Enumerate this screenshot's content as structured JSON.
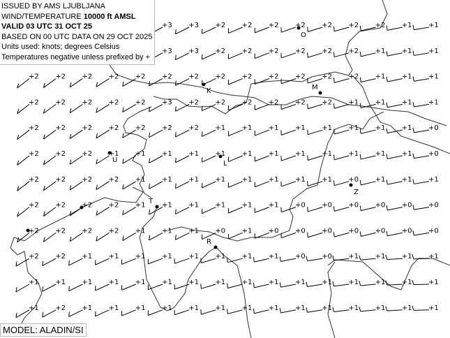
{
  "header": {
    "issued": "ISSUED BY AMS LJUBLJANA",
    "product_prefix": "WIND/TEMPERATURE ",
    "level": "10000 ft AMSL",
    "valid": "VALID 03 UTC 31 OCT 25",
    "based_on": "BASED ON 00 UTC DATA ON 29 OCT 2025",
    "units": "Units used: knots; degrees Celsius",
    "note": "Temperatures negative unless prefixed by +"
  },
  "model_label": "MODEL: ALADIN/SI",
  "temperature_grid": [
    [
      null,
      null,
      null,
      null,
      null,
      "+3",
      "+3",
      "+2",
      "+2",
      "+2",
      "+2",
      "+2",
      "+2",
      "+2",
      "+1",
      "+1"
    ],
    [
      null,
      null,
      null,
      null,
      null,
      "+3",
      "+3",
      "+2",
      "+2",
      "+2",
      "+2",
      "+2",
      "+2",
      "+1",
      "+1",
      "+1"
    ],
    [
      "+2",
      "+2",
      "+2",
      "+2",
      "+2",
      "+2",
      "+2",
      "+2",
      "+2",
      "+2",
      "+2",
      "+2",
      "+2",
      "+1",
      "+1",
      "+1"
    ],
    [
      "+2",
      "+2",
      "+2",
      "+2",
      "+2",
      "+3",
      "+2",
      "+2",
      "+2",
      "+2",
      "+2",
      "+2",
      "+1",
      "+1",
      "+1",
      "+1"
    ],
    [
      "+2",
      "+2",
      "+2",
      "+2",
      "+2",
      "+2",
      "+2",
      "+1",
      "+1",
      "+1",
      "+1",
      "+1",
      "+1",
      "+1",
      "+1",
      "+0"
    ],
    [
      "+2",
      "+2",
      "+2",
      "+1",
      "+1",
      "+1",
      "+1",
      "+1",
      "+1",
      "+1",
      "+1",
      "+1",
      "+1",
      "+1",
      "+1",
      "+0"
    ],
    [
      "+2",
      "+2",
      "+2",
      "+2",
      "+1",
      "+1",
      "+1",
      "+1",
      "+1",
      "+1",
      "+1",
      "+1",
      "+0",
      "+1",
      "+1",
      "+1"
    ],
    [
      "+2",
      "+2",
      "+2",
      "+2",
      "+1",
      "+1",
      "+1",
      "+1",
      "+1",
      "+1",
      "+0",
      "+0",
      "+0",
      "+0",
      "+0",
      "+0"
    ],
    [
      "+2",
      "+2",
      "+2",
      "+2",
      "+1",
      "+1",
      "+1",
      "+0",
      "+1",
      "+0",
      "+0",
      "+0",
      "+0",
      "+0",
      "+0",
      "+0"
    ],
    [
      "+2",
      "+2",
      "+1",
      "+1",
      "+1",
      "+1",
      "+1",
      "+1",
      "+1",
      "+1",
      "+0",
      "+0",
      "+1",
      "+1",
      "+1",
      "+1"
    ],
    [
      "+1",
      "+1",
      "+1",
      "+1",
      "+1",
      "+1",
      "+1",
      "+1",
      "+1",
      "+1",
      "+1",
      "+1",
      "+1",
      "+1",
      "+1",
      "+1"
    ],
    [
      "+1",
      "+2",
      "+1",
      "+1",
      "+1",
      "+1",
      "+1",
      "+1",
      "+1",
      "+1",
      "+1",
      "+1",
      "+1",
      "+1",
      "+1",
      "+1"
    ]
  ],
  "stations": [
    {
      "label": "O"
    },
    {
      "label": "K"
    },
    {
      "label": "M"
    },
    {
      "label": "U"
    },
    {
      "label": "L"
    },
    {
      "label": "Z"
    },
    {
      "label": "T"
    },
    {
      "label": "R"
    }
  ],
  "colors": {
    "barbs": "#000000",
    "coastline": "#333333",
    "background": "#ffffff"
  }
}
